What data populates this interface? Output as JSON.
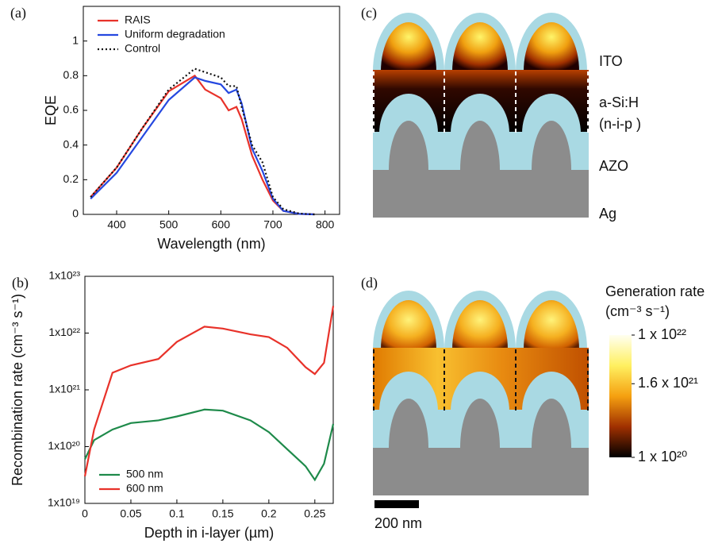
{
  "chart_data": [
    {
      "type": "line",
      "panel": "(a)",
      "ylabel": "EQE",
      "xlabel": "Wavelength (nm)",
      "x": [
        350,
        400,
        450,
        500,
        550,
        570,
        600,
        615,
        630,
        640,
        660,
        680,
        700,
        720,
        750,
        780
      ],
      "series": [
        {
          "name": "RAIS",
          "color": "#e8322a",
          "values": [
            0.1,
            0.27,
            0.5,
            0.71,
            0.8,
            0.72,
            0.67,
            0.6,
            0.62,
            0.55,
            0.34,
            0.2,
            0.08,
            0.02,
            0.003,
            0
          ]
        },
        {
          "name": "Uniform degradation",
          "color": "#2548e0",
          "values": [
            0.09,
            0.24,
            0.45,
            0.66,
            0.79,
            0.77,
            0.75,
            0.7,
            0.72,
            0.64,
            0.38,
            0.25,
            0.09,
            0.02,
            0.003,
            0
          ]
        },
        {
          "name": "Control",
          "color": "#111111",
          "dash": "dotted",
          "values": [
            0.1,
            0.27,
            0.5,
            0.72,
            0.84,
            0.82,
            0.79,
            0.74,
            0.74,
            0.62,
            0.4,
            0.3,
            0.1,
            0.03,
            0.005,
            0
          ]
        }
      ],
      "xlim": [
        336,
        828
      ],
      "xticks": [
        400,
        500,
        600,
        700,
        800
      ],
      "ylim": [
        0,
        1.2
      ],
      "yticks": [
        0,
        0.2,
        0.4,
        0.6,
        0.8,
        1
      ],
      "legend": "upper-left"
    },
    {
      "type": "line",
      "panel": "(b)",
      "ylabel": "Recombination rate (cm⁻³ s⁻¹)",
      "xlabel": "Depth in i-layer (µm)",
      "x": [
        0,
        0.01,
        0.03,
        0.05,
        0.08,
        0.1,
        0.13,
        0.15,
        0.18,
        0.2,
        0.22,
        0.24,
        0.25,
        0.26,
        0.27
      ],
      "series": [
        {
          "name": "500 nm",
          "color": "#1e8a4a",
          "values": [
            6e+19,
            1.3e+20,
            2e+20,
            2.6e+20,
            2.9e+20,
            3.4e+20,
            4.5e+20,
            4.3e+20,
            2.9e+20,
            1.8e+20,
            9e+19,
            4.5e+19,
            2.6e+19,
            5e+19,
            2.5e+20
          ]
        },
        {
          "name": "600 nm",
          "color": "#e8322a",
          "values": [
            3e+19,
            2e+20,
            2e+21,
            2.7e+21,
            3.5e+21,
            7e+21,
            1.3e+22,
            1.2e+22,
            9.5e+21,
            8.5e+21,
            5.5e+21,
            2.5e+21,
            1.9e+21,
            3e+21,
            3e+22
          ]
        }
      ],
      "xlim": [
        0,
        0.27
      ],
      "xticks": [
        0,
        0.05,
        0.1,
        0.15,
        0.2,
        0.25
      ],
      "ylim": [
        1e+19,
        1e+23
      ],
      "ylog": true,
      "yticks": [
        {
          "value": 1e+19,
          "label": "1x10¹⁹"
        },
        {
          "value": 1e+20,
          "label": "1x10²⁰"
        },
        {
          "value": 1e+21,
          "label": "1x10²¹"
        },
        {
          "value": 1e+22,
          "label": "1x10²²"
        },
        {
          "value": 1e+23,
          "label": "1x10²³"
        }
      ],
      "legend": "lower-left"
    }
  ],
  "panels": {
    "c": {
      "label": "(c)",
      "layers": [
        "ITO",
        "a-Si:H",
        "(n-i-p )",
        "AZO",
        "Ag"
      ]
    },
    "d": {
      "label": "(d)",
      "colorbar_title": "Generation rate",
      "colorbar_unit": "(cm⁻³ s⁻¹)",
      "colorbar_ticks": [
        {
          "value": 1e+22,
          "label": "1 x 10²²"
        },
        {
          "value": 1.6e+21,
          "label": "1.6 x 10²¹"
        },
        {
          "value": 1e+20,
          "label": "1 x 10²⁰"
        }
      ],
      "scale_bar": "200 nm"
    }
  }
}
